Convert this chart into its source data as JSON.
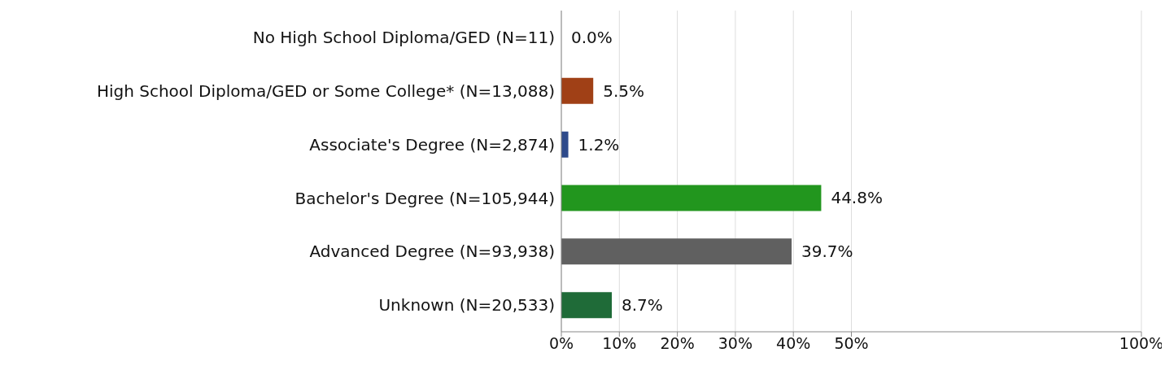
{
  "chart_data": {
    "type": "bar",
    "orientation": "horizontal",
    "categories": [
      "No High School Diploma/GED (N=11)",
      "High School Diploma/GED or Some College* (N=13,088)",
      "Associate's Degree (N=2,874)",
      "Bachelor's Degree (N=105,944)",
      "Advanced Degree (N=93,938)",
      "Unknown (N=20,533)"
    ],
    "values": [
      0.0,
      5.5,
      1.2,
      44.8,
      39.7,
      8.7
    ],
    "colors": [
      "#808080",
      "#a04016",
      "#2e4a8b",
      "#22961e",
      "#606060",
      "#1f6b38"
    ],
    "value_labels": [
      "0.0%",
      "5.5%",
      "1.2%",
      "44.8%",
      "39.7%",
      "8.7%"
    ],
    "xlim": [
      0,
      100
    ],
    "xticks": [
      {
        "value": 0,
        "label": "0%"
      },
      {
        "value": 10,
        "label": "10%"
      },
      {
        "value": 20,
        "label": "20%"
      },
      {
        "value": 30,
        "label": "30%"
      },
      {
        "value": 40,
        "label": "40%"
      },
      {
        "value": 50,
        "label": "50%"
      },
      {
        "value": 100,
        "label": "100%"
      }
    ],
    "grid": "x"
  }
}
